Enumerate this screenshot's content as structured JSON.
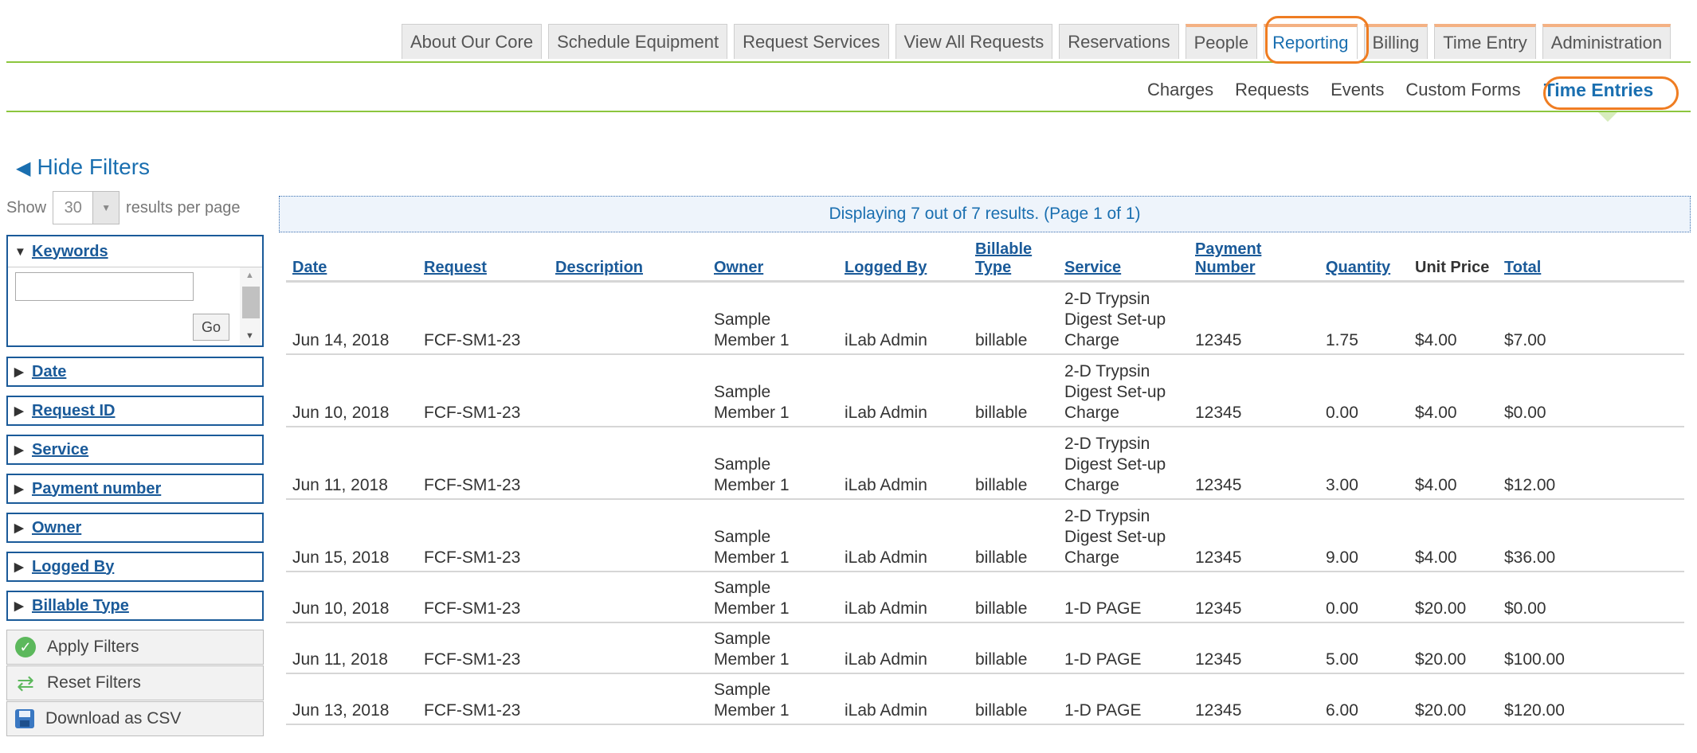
{
  "nav": {
    "tabs": [
      {
        "label": "About Our Core"
      },
      {
        "label": "Schedule Equipment"
      },
      {
        "label": "Request Services"
      },
      {
        "label": "View All Requests"
      },
      {
        "label": "Reservations"
      },
      {
        "label": "People"
      },
      {
        "label": "Reporting"
      },
      {
        "label": "Billing"
      },
      {
        "label": "Time Entry"
      },
      {
        "label": "Administration"
      }
    ],
    "active_tab": "Reporting",
    "subtabs": [
      {
        "label": "Charges"
      },
      {
        "label": "Requests"
      },
      {
        "label": "Events"
      },
      {
        "label": "Custom Forms"
      },
      {
        "label": "Time Entries"
      }
    ],
    "active_subtab": "Time Entries",
    "accent_colors": {
      "nav_line": "#8cc63e",
      "highlight": "#ef7d22",
      "link": "#1a5a99"
    }
  },
  "filters": {
    "hide_label": "Hide Filters",
    "show_label": "Show",
    "per_page_value": "30",
    "per_page_suffix": "results per page",
    "keywords": {
      "title": "Keywords",
      "input_value": "",
      "go_label": "Go"
    },
    "collapsed": [
      {
        "title": "Date"
      },
      {
        "title": "Request ID"
      },
      {
        "title": "Service"
      },
      {
        "title": "Payment number"
      },
      {
        "title": "Owner"
      },
      {
        "title": "Logged By"
      },
      {
        "title": "Billable Type"
      }
    ],
    "actions": {
      "apply": "Apply Filters",
      "reset": "Reset Filters",
      "download": "Download as CSV"
    }
  },
  "results": {
    "summary": "Displaying 7 out of 7 results. (Page 1 of 1)",
    "columns": {
      "date": "Date",
      "request": "Request",
      "description": "Description",
      "owner": "Owner",
      "logged_by": "Logged By",
      "billable_type": "Billable Type",
      "service": "Service",
      "payment_number": "Payment Number",
      "quantity": "Quantity",
      "unit_price": "Unit Price",
      "total": "Total"
    },
    "rows": [
      {
        "date": "Jun 14, 2018",
        "request": "FCF-SM1-23",
        "description": "",
        "owner": "Sample Member 1",
        "logged_by": "iLab Admin",
        "billable_type": "billable",
        "service": "2-D Trypsin Digest Set-up Charge",
        "payment_number": "12345",
        "quantity": "1.75",
        "unit_price": "$4.00",
        "total": "$7.00"
      },
      {
        "date": "Jun 10, 2018",
        "request": "FCF-SM1-23",
        "description": "",
        "owner": "Sample Member 1",
        "logged_by": "iLab Admin",
        "billable_type": "billable",
        "service": "2-D Trypsin Digest Set-up Charge",
        "payment_number": "12345",
        "quantity": "0.00",
        "unit_price": "$4.00",
        "total": "$0.00"
      },
      {
        "date": "Jun 11, 2018",
        "request": "FCF-SM1-23",
        "description": "",
        "owner": "Sample Member 1",
        "logged_by": "iLab Admin",
        "billable_type": "billable",
        "service": "2-D Trypsin Digest Set-up Charge",
        "payment_number": "12345",
        "quantity": "3.00",
        "unit_price": "$4.00",
        "total": "$12.00"
      },
      {
        "date": "Jun 15, 2018",
        "request": "FCF-SM1-23",
        "description": "",
        "owner": "Sample Member 1",
        "logged_by": "iLab Admin",
        "billable_type": "billable",
        "service": "2-D Trypsin Digest Set-up Charge",
        "payment_number": "12345",
        "quantity": "9.00",
        "unit_price": "$4.00",
        "total": "$36.00"
      },
      {
        "date": "Jun 10, 2018",
        "request": "FCF-SM1-23",
        "description": "",
        "owner": "Sample Member 1",
        "logged_by": "iLab Admin",
        "billable_type": "billable",
        "service": "1-D PAGE",
        "payment_number": "12345",
        "quantity": "0.00",
        "unit_price": "$20.00",
        "total": "$0.00"
      },
      {
        "date": "Jun 11, 2018",
        "request": "FCF-SM1-23",
        "description": "",
        "owner": "Sample Member 1",
        "logged_by": "iLab Admin",
        "billable_type": "billable",
        "service": "1-D PAGE",
        "payment_number": "12345",
        "quantity": "5.00",
        "unit_price": "$20.00",
        "total": "$100.00"
      },
      {
        "date": "Jun 13, 2018",
        "request": "FCF-SM1-23",
        "description": "",
        "owner": "Sample Member 1",
        "logged_by": "iLab Admin",
        "billable_type": "billable",
        "service": "1-D PAGE",
        "payment_number": "12345",
        "quantity": "6.00",
        "unit_price": "$20.00",
        "total": "$120.00"
      }
    ]
  }
}
